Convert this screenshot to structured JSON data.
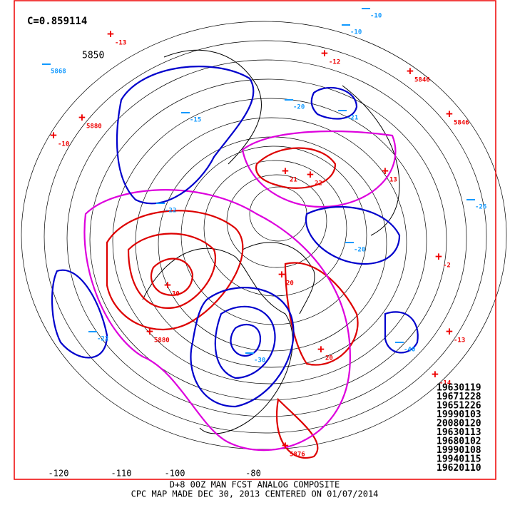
{
  "header": {
    "correlation": "C=0.859114",
    "height_label": "5850"
  },
  "longitude_labels": [
    "-120",
    "-110",
    "-100",
    "-80"
  ],
  "anomaly_centers": {
    "highs": [
      "-13",
      "-12",
      "5846",
      "5846",
      "5880",
      "-10",
      "21",
      "22",
      "13",
      "-2",
      "30",
      "5880",
      "-13",
      "20",
      "-14",
      "5876",
      "20"
    ],
    "lows": [
      "-10",
      "-10",
      "5868",
      "-20",
      "-21",
      "-15",
      "-22",
      "-26",
      "-20",
      "-22",
      "-40",
      "-30"
    ]
  },
  "analog_dates": [
    "19630119",
    "19671228",
    "19651226",
    "19990103",
    "20080120",
    "19630113",
    "19680102",
    "19990108",
    "19940115",
    "19620110"
  ],
  "footer": {
    "line1": "D+8 00Z MAN FCST ANALOG COMPOSITE",
    "line2": "CPC MAP MADE DEC 30, 2013 CENTERED ON 01/07/2014"
  }
}
